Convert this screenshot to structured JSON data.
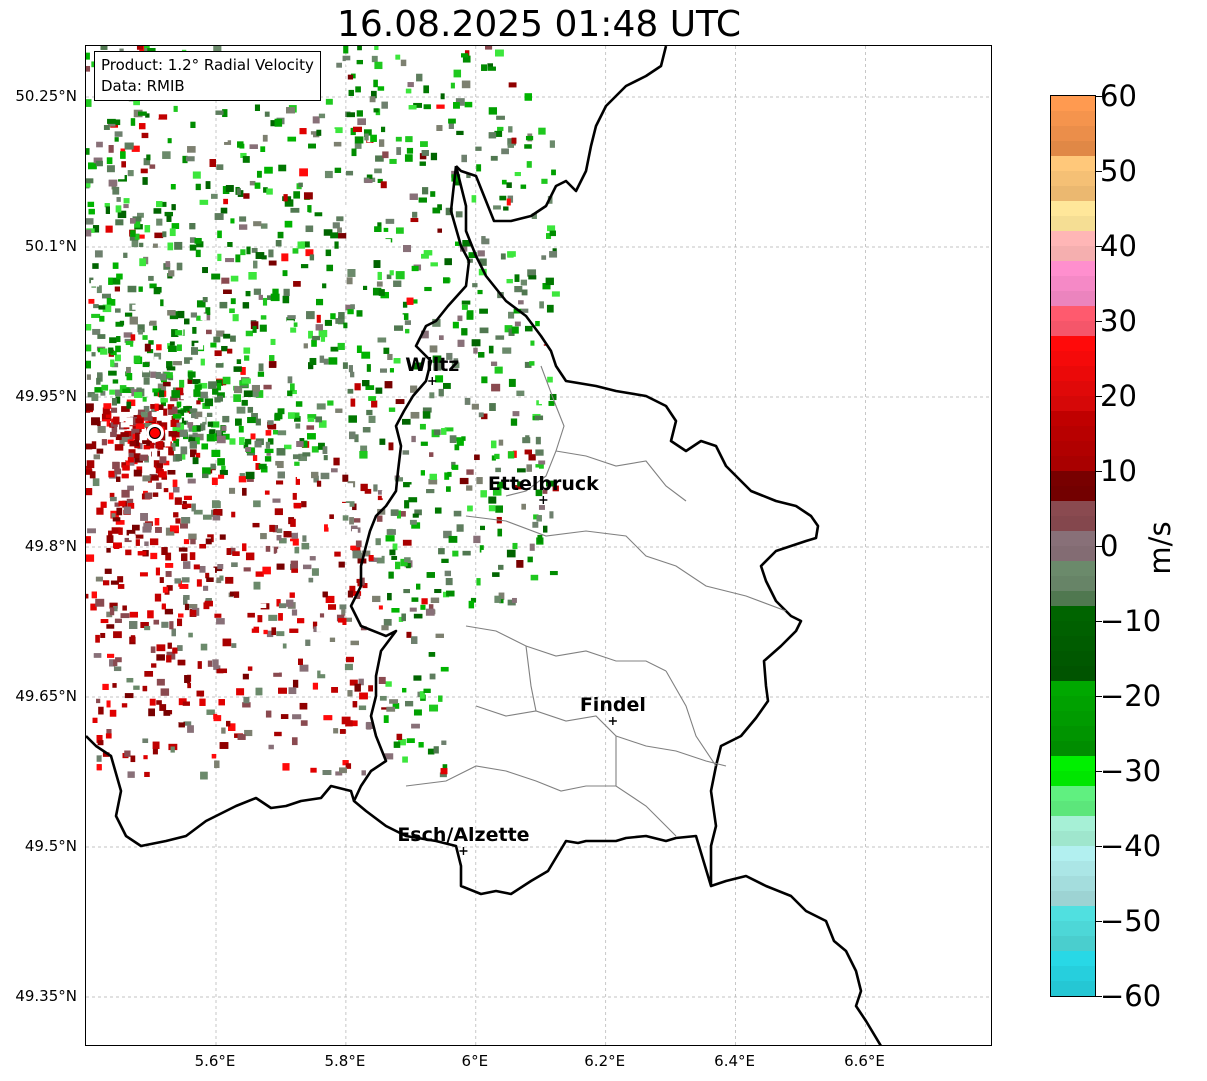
{
  "title": "16.08.2025 01:48 UTC",
  "info": {
    "product": "Product: 1.2° Radial Velocity",
    "source": "Data: RMIB"
  },
  "map": {
    "lon_range": [
      5.4,
      6.8
    ],
    "lat_range": [
      49.3,
      50.3
    ],
    "lat_ticks": [
      {
        "value": 50.25,
        "label": "50.25°N"
      },
      {
        "value": 50.1,
        "label": "50.1°N"
      },
      {
        "value": 49.95,
        "label": "49.95°N"
      },
      {
        "value": 49.8,
        "label": "49.8°N"
      },
      {
        "value": 49.65,
        "label": "49.65°N"
      },
      {
        "value": 49.5,
        "label": "49.5°N"
      },
      {
        "value": 49.35,
        "label": "49.35°N"
      }
    ],
    "lon_ticks": [
      {
        "value": 5.6,
        "label": "5.6°E"
      },
      {
        "value": 5.8,
        "label": "5.8°E"
      },
      {
        "value": 6.0,
        "label": "6°E"
      },
      {
        "value": 6.2,
        "label": "6.2°E"
      },
      {
        "value": 6.4,
        "label": "6.4°E"
      },
      {
        "value": 6.6,
        "label": "6.6°E"
      }
    ],
    "gridlines": true,
    "radar_site": {
      "lon": 5.506,
      "lat": 49.914
    },
    "cities": [
      {
        "name": "Wiltz",
        "lon": 5.933,
        "lat": 49.966
      },
      {
        "name": "Ettelbruck",
        "lon": 6.104,
        "lat": 49.847
      },
      {
        "name": "Findel",
        "lon": 6.211,
        "lat": 49.626
      },
      {
        "name": "Esch/Alzette",
        "lon": 5.981,
        "lat": 49.496
      }
    ],
    "colors": {
      "border": "#000000",
      "canton_lines": "#808080",
      "grid": "#b0b0b0",
      "radar_site": "#ff0000"
    }
  },
  "colorbar": {
    "unit": "m/s",
    "min": -60,
    "max": 60,
    "ticks": [
      {
        "value": 60,
        "label": "60"
      },
      {
        "value": 50,
        "label": "50"
      },
      {
        "value": 40,
        "label": "40"
      },
      {
        "value": 30,
        "label": "30"
      },
      {
        "value": 20,
        "label": "20"
      },
      {
        "value": 10,
        "label": "10"
      },
      {
        "value": 0,
        "label": "0"
      },
      {
        "value": -10,
        "label": "−10"
      },
      {
        "value": -20,
        "label": "−20"
      },
      {
        "value": -30,
        "label": "−30"
      },
      {
        "value": -40,
        "label": "−40"
      },
      {
        "value": -50,
        "label": "−50"
      },
      {
        "value": -60,
        "label": "−60"
      }
    ],
    "stops": [
      {
        "value": 60,
        "color": "#ff9a50"
      },
      {
        "value": 52,
        "color": "#ffc87a"
      },
      {
        "value": 46,
        "color": "#ffe79a"
      },
      {
        "value": 42,
        "color": "#ffb6b6"
      },
      {
        "value": 38,
        "color": "#ff8fce"
      },
      {
        "value": 32,
        "color": "#ff5a6e"
      },
      {
        "value": 28,
        "color": "#ff0a0a"
      },
      {
        "value": 18,
        "color": "#c00000"
      },
      {
        "value": 10,
        "color": "#780000"
      },
      {
        "value": 6,
        "color": "#8a4a50"
      },
      {
        "value": 2,
        "color": "#887078"
      },
      {
        "value": -2,
        "color": "#6b8a6b"
      },
      {
        "value": -6,
        "color": "#507850"
      },
      {
        "value": -8,
        "color": "#006400"
      },
      {
        "value": -18,
        "color": "#00a800"
      },
      {
        "value": -28,
        "color": "#00f000"
      },
      {
        "value": -32,
        "color": "#60f080"
      },
      {
        "value": -36,
        "color": "#a6f0d6"
      },
      {
        "value": -40,
        "color": "#b2f0f0"
      },
      {
        "value": -48,
        "color": "#50e0e0"
      },
      {
        "value": -54,
        "color": "#28d8e6"
      },
      {
        "value": -60,
        "color": "#1f78c0"
      }
    ]
  }
}
